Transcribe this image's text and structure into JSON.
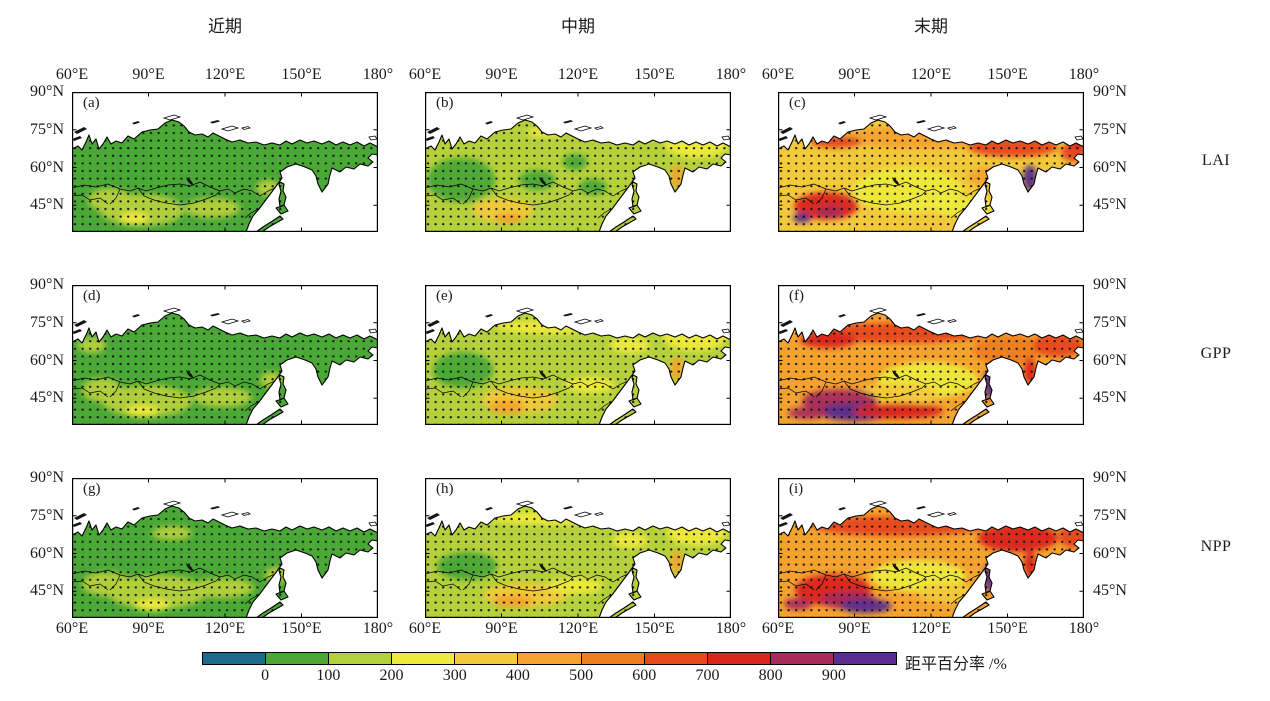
{
  "figure": {
    "column_titles": [
      "近期",
      "中期",
      "末期"
    ],
    "row_labels": [
      "LAI",
      "GPP",
      "NPP"
    ],
    "panel_letters": [
      "(a)",
      "(b)",
      "(c)",
      "(d)",
      "(e)",
      "(f)",
      "(g)",
      "(h)",
      "(i)"
    ],
    "lon_ticks": [
      "60°E",
      "90°E",
      "120°E",
      "150°E",
      "180°"
    ],
    "lat_ticks": [
      "90°N",
      "75°N",
      "60°N",
      "45°N"
    ]
  },
  "colorbar": {
    "label": "距平百分率 /%",
    "tick_labels": [
      "0",
      "100",
      "200",
      "300",
      "400",
      "500",
      "600",
      "700",
      "800",
      "900"
    ],
    "colors": [
      "#1e6a8c",
      "#4aa836",
      "#b5d03b",
      "#eeea3d",
      "#f2c93a",
      "#f5a32e",
      "#ee7d1e",
      "#e6471d",
      "#da251c",
      "#a82a5b",
      "#5a2d90"
    ]
  },
  "panels": [
    {
      "letter": "(a)",
      "variable": "LAI",
      "period": "近期",
      "base_bin": 1,
      "patches": [
        [
          70,
          118,
          42,
          16,
          2
        ],
        [
          38,
          108,
          22,
          12,
          2
        ],
        [
          62,
          126,
          14,
          6,
          3
        ],
        [
          140,
          116,
          28,
          10,
          2
        ],
        [
          196,
          96,
          12,
          8,
          2
        ]
      ]
    },
    {
      "letter": "(b)",
      "variable": "LAI",
      "period": "中期",
      "base_bin": 2,
      "patches": [
        [
          36,
          88,
          34,
          22,
          1
        ],
        [
          112,
          88,
          18,
          10,
          1
        ],
        [
          168,
          95,
          14,
          8,
          1
        ],
        [
          272,
          52,
          32,
          14,
          3
        ],
        [
          240,
          42,
          18,
          6,
          3
        ],
        [
          120,
          40,
          18,
          5,
          3
        ],
        [
          78,
          118,
          30,
          12,
          4
        ],
        [
          84,
          126,
          14,
          5,
          5
        ],
        [
          252,
          84,
          6,
          12,
          5
        ],
        [
          150,
          70,
          12,
          8,
          1
        ]
      ]
    },
    {
      "letter": "(c)",
      "variable": "LAI",
      "period": "末期",
      "base_bin": 4,
      "patches": [
        [
          150,
          45,
          85,
          12,
          5
        ],
        [
          58,
          50,
          26,
          6,
          7
        ],
        [
          235,
          55,
          45,
          10,
          7
        ],
        [
          130,
          98,
          55,
          22,
          3
        ],
        [
          185,
          115,
          30,
          10,
          3
        ],
        [
          48,
          114,
          32,
          14,
          8
        ],
        [
          52,
          120,
          14,
          6,
          9
        ],
        [
          24,
          126,
          9,
          5,
          10
        ],
        [
          252,
          86,
          7,
          13,
          10
        ],
        [
          295,
          60,
          12,
          10,
          7
        ],
        [
          210,
          85,
          20,
          10,
          5
        ],
        [
          300,
          52,
          8,
          6,
          8
        ]
      ]
    },
    {
      "letter": "(d)",
      "variable": "GPP",
      "period": "近期",
      "base_bin": 1,
      "patches": [
        [
          75,
          116,
          45,
          16,
          2
        ],
        [
          30,
          105,
          20,
          12,
          2
        ],
        [
          150,
          112,
          30,
          10,
          2
        ],
        [
          70,
          126,
          16,
          6,
          3
        ],
        [
          20,
          60,
          14,
          8,
          2
        ],
        [
          200,
          95,
          12,
          8,
          2
        ]
      ]
    },
    {
      "letter": "(e)",
      "variable": "GPP",
      "period": "中期",
      "base_bin": 2,
      "patches": [
        [
          130,
          42,
          60,
          7,
          3
        ],
        [
          270,
          52,
          32,
          14,
          3
        ],
        [
          38,
          85,
          30,
          18,
          1
        ],
        [
          24,
          92,
          12,
          8,
          1
        ],
        [
          95,
          115,
          38,
          13,
          4
        ],
        [
          82,
          122,
          18,
          7,
          5
        ],
        [
          252,
          84,
          6,
          12,
          5
        ],
        [
          165,
          100,
          25,
          8,
          3
        ],
        [
          205,
          60,
          20,
          8,
          3
        ]
      ]
    },
    {
      "letter": "(f)",
      "variable": "GPP",
      "period": "末期",
      "base_bin": 5,
      "patches": [
        [
          150,
          95,
          50,
          18,
          3
        ],
        [
          120,
          110,
          40,
          12,
          4
        ],
        [
          120,
          48,
          85,
          10,
          7
        ],
        [
          50,
          55,
          28,
          8,
          8
        ],
        [
          230,
          65,
          35,
          15,
          6
        ],
        [
          280,
          60,
          25,
          12,
          7
        ],
        [
          62,
          116,
          38,
          12,
          9
        ],
        [
          78,
          127,
          38,
          9,
          10
        ],
        [
          120,
          126,
          45,
          8,
          8
        ],
        [
          211,
          100,
          5,
          14,
          10
        ],
        [
          252,
          86,
          6,
          13,
          8
        ],
        [
          30,
          128,
          20,
          6,
          9
        ]
      ]
    },
    {
      "letter": "(g)",
      "variable": "NPP",
      "period": "近期",
      "base_bin": 1,
      "patches": [
        [
          85,
          114,
          50,
          17,
          2
        ],
        [
          35,
          106,
          25,
          12,
          2
        ],
        [
          80,
          127,
          18,
          6,
          3
        ],
        [
          150,
          110,
          32,
          10,
          2
        ],
        [
          100,
          55,
          20,
          7,
          2
        ],
        [
          205,
          97,
          12,
          8,
          2
        ]
      ]
    },
    {
      "letter": "(h)",
      "variable": "NPP",
      "period": "中期",
      "base_bin": 2,
      "patches": [
        [
          42,
          88,
          30,
          14,
          1
        ],
        [
          30,
          91,
          12,
          7,
          1
        ],
        [
          130,
          40,
          70,
          7,
          3
        ],
        [
          272,
          54,
          30,
          14,
          3
        ],
        [
          100,
          117,
          42,
          12,
          4
        ],
        [
          88,
          123,
          20,
          6,
          5
        ],
        [
          150,
          108,
          28,
          8,
          3
        ],
        [
          252,
          84,
          6,
          12,
          5
        ],
        [
          205,
          62,
          18,
          8,
          3
        ]
      ]
    },
    {
      "letter": "(i)",
      "variable": "NPP",
      "period": "末期",
      "base_bin": 5,
      "patches": [
        [
          140,
          98,
          48,
          16,
          3
        ],
        [
          120,
          48,
          85,
          10,
          7
        ],
        [
          55,
          112,
          38,
          16,
          8
        ],
        [
          70,
          122,
          28,
          9,
          9
        ],
        [
          88,
          128,
          26,
          7,
          10
        ],
        [
          240,
          60,
          40,
          14,
          8
        ],
        [
          295,
          58,
          14,
          12,
          7
        ],
        [
          211,
          100,
          5,
          14,
          10
        ],
        [
          252,
          86,
          6,
          13,
          8
        ],
        [
          170,
          115,
          30,
          10,
          4
        ],
        [
          20,
          126,
          14,
          6,
          9
        ]
      ]
    }
  ],
  "chart_data": {
    "type": "heatmap",
    "subtype": "3x3 map grid, anomaly percentage over northern Eurasia (60°E–180°, ~45°N–90°N), stippled with black dots over land",
    "columns": [
      "近期",
      "中期",
      "末期"
    ],
    "rows": [
      "LAI",
      "GPP",
      "NPP"
    ],
    "lon_axis_ticks": [
      "60°E",
      "90°E",
      "120°E",
      "150°E",
      "180°"
    ],
    "lat_axis_ticks": [
      "90°N",
      "75°N",
      "60°N",
      "45°N"
    ],
    "colorbar": {
      "label": "距平百分率 /%",
      "bin_edges": [
        0,
        100,
        200,
        300,
        400,
        500,
        600,
        700,
        800,
        900
      ],
      "bin_colors": [
        "#1e6a8c",
        "#4aa836",
        "#b5d03b",
        "#eeea3d",
        "#f2c93a",
        "#f5a32e",
        "#ee7d1e",
        "#e6471d",
        "#da251c",
        "#a82a5b",
        "#5a2d90"
      ],
      "legend_position": "bottom"
    },
    "panels": [
      {
        "letter": "(a)",
        "row": "LAI",
        "column": "近期",
        "typical_anomaly_pct": "0-100",
        "notes": "100-200 patches in southwest"
      },
      {
        "letter": "(b)",
        "row": "LAI",
        "column": "中期",
        "typical_anomaly_pct": "100-200",
        "notes": "200-300 in northeast, 0-100 in west"
      },
      {
        "letter": "(c)",
        "row": "LAI",
        "column": "末期",
        "typical_anomaly_pct": "300-500",
        "notes": "700-900 southwest, >900 Kamchatka and far south spots"
      },
      {
        "letter": "(d)",
        "row": "GPP",
        "column": "近期",
        "typical_anomaly_pct": "0-100",
        "notes": "100-200 patches in south"
      },
      {
        "letter": "(e)",
        "row": "GPP",
        "column": "中期",
        "typical_anomaly_pct": "100-200",
        "notes": "300-500 southwest, 0-100 patch west"
      },
      {
        "letter": "(f)",
        "row": "GPP",
        "column": "末期",
        "typical_anomaly_pct": "400-600",
        "notes": "800-900 south, >900 patches southwest and Sakhalin"
      },
      {
        "letter": "(g)",
        "row": "NPP",
        "column": "近期",
        "typical_anomaly_pct": "0-100",
        "notes": "100-200 patches in south"
      },
      {
        "letter": "(h)",
        "row": "NPP",
        "column": "中期",
        "typical_anomaly_pct": "100-200",
        "notes": "300-500 south, 0-100 patch west"
      },
      {
        "letter": "(i)",
        "row": "NPP",
        "column": "末期",
        "typical_anomaly_pct": "400-600",
        "notes": "700-900 south, >900 patches"
      }
    ]
  }
}
